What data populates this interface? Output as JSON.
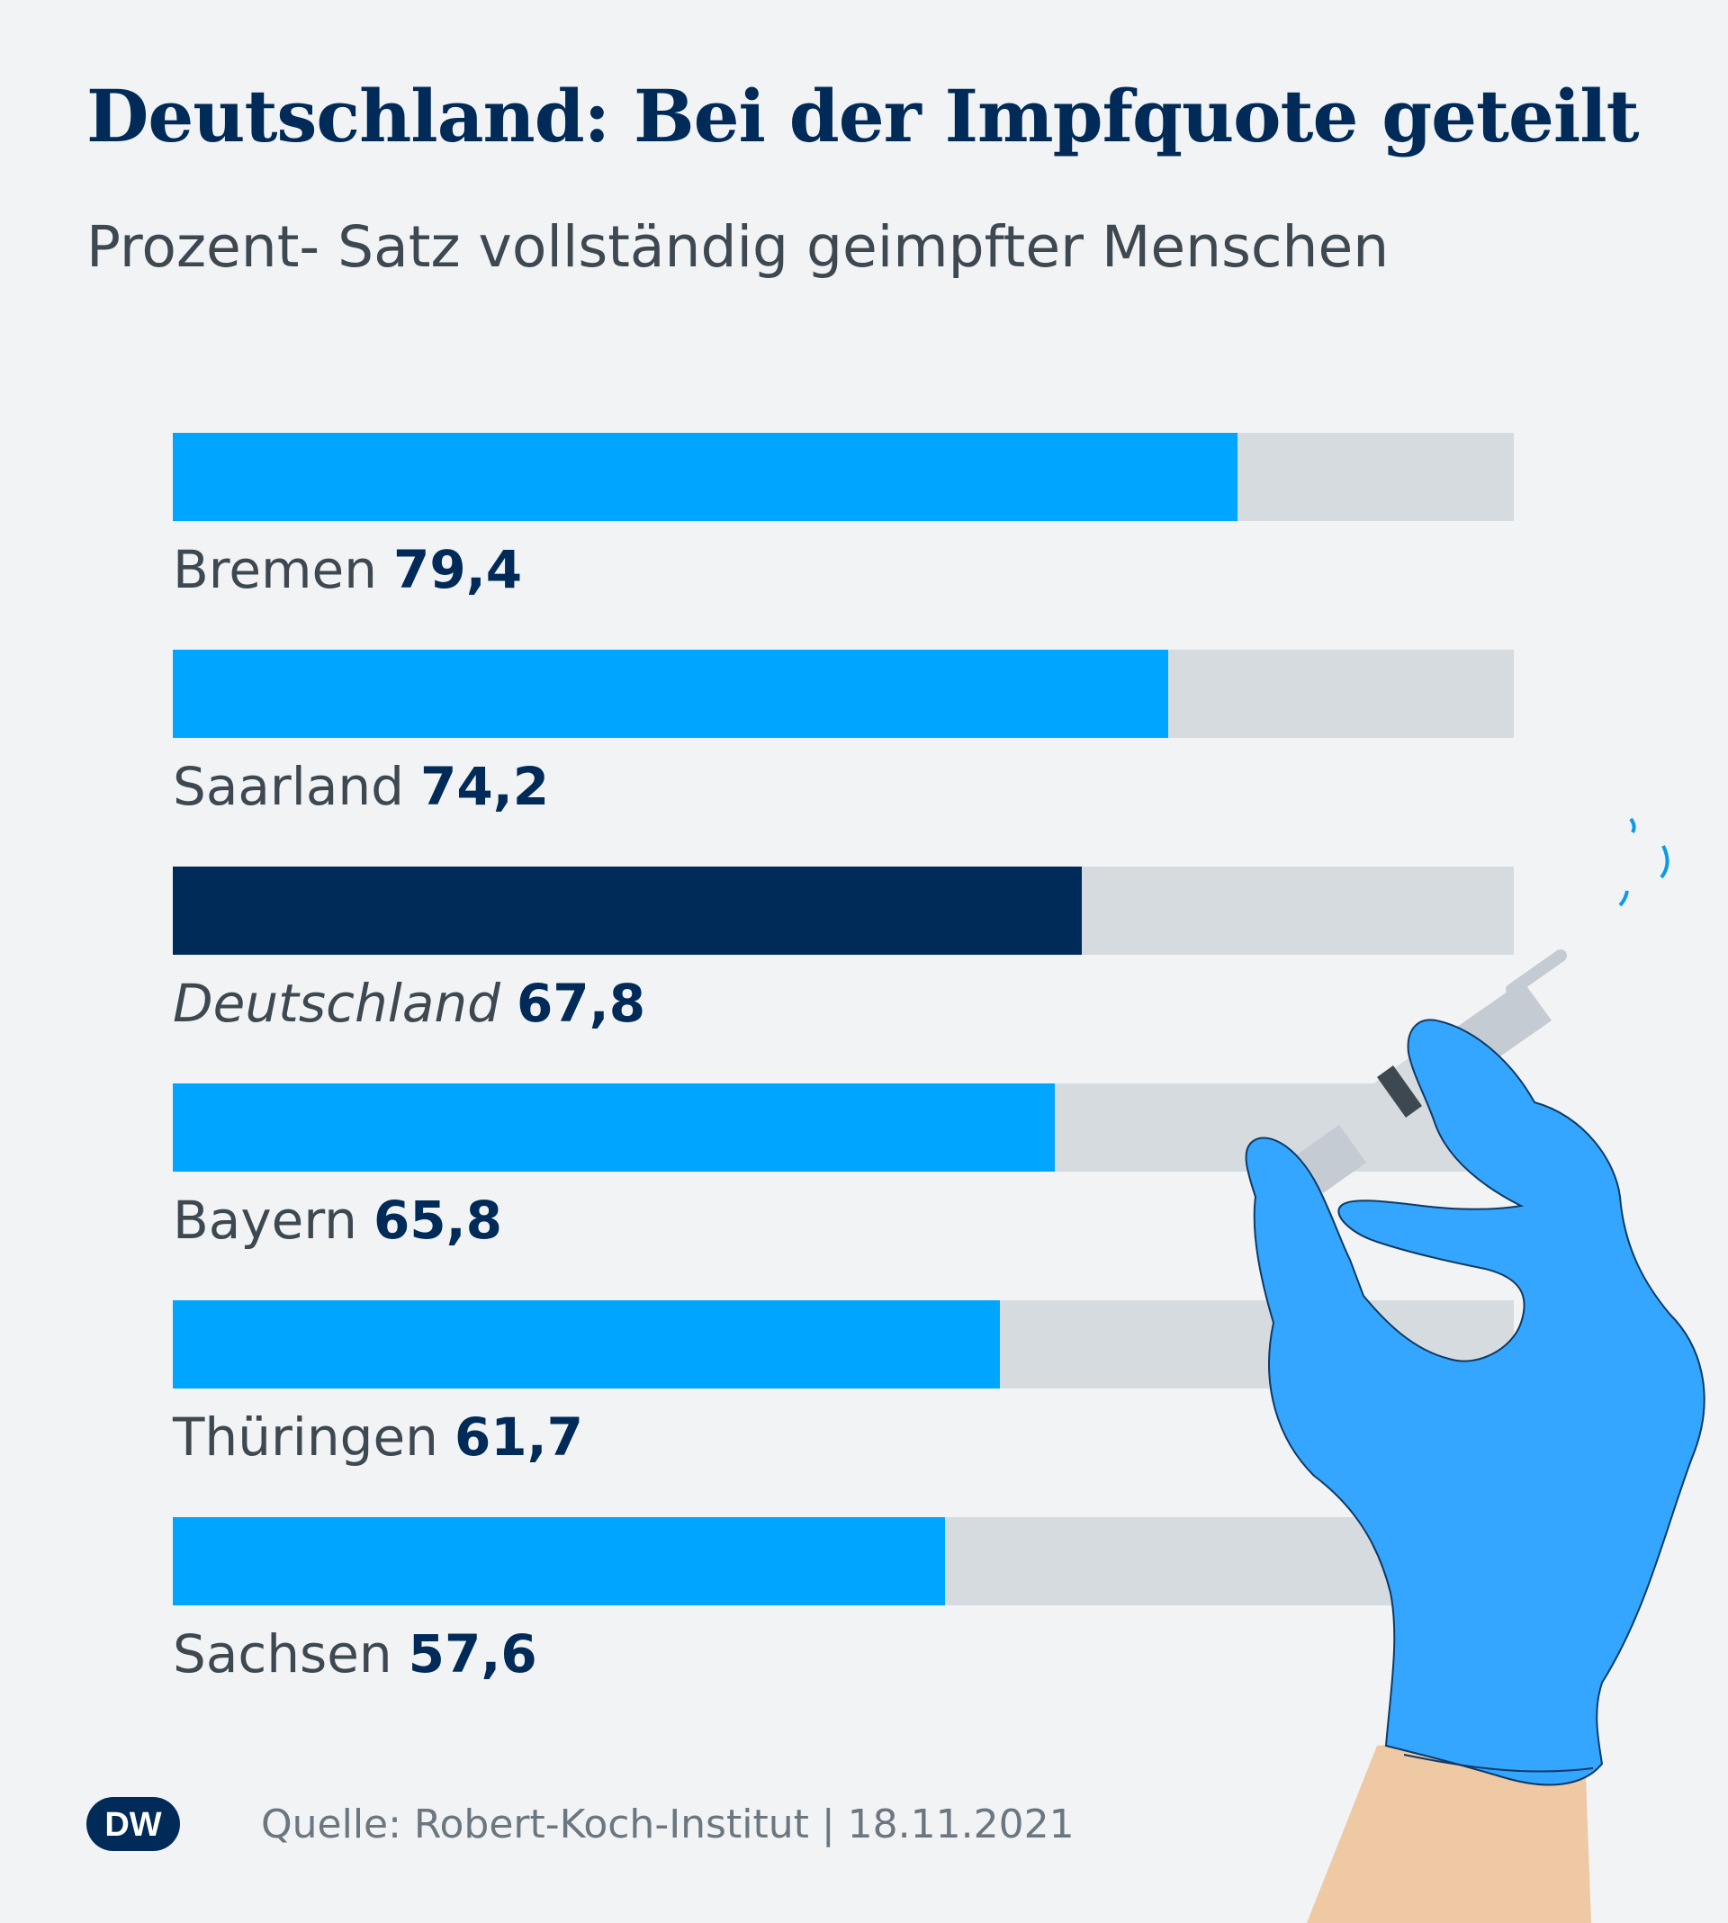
{
  "title": "Deutschland: Bei der Impfquote geteilt",
  "subtitle": "Prozent- Satz vollständig geimpfter Menschen",
  "chart_data": {
    "type": "bar",
    "orientation": "horizontal",
    "categories": [
      "Bremen",
      "Saarland",
      "Deutschland",
      "Bayern",
      "Thüringen",
      "Sachsen"
    ],
    "values": [
      79.4,
      74.2,
      67.8,
      65.8,
      61.7,
      57.6
    ],
    "value_labels": [
      "79,4",
      "74,2",
      "67,8",
      "65,8",
      "61,7",
      "57,6"
    ],
    "highlight": "Deutschland",
    "xlim": [
      0,
      100
    ],
    "grid": false,
    "colors": {
      "bar": "#00a5ff",
      "highlight": "#002a58",
      "track": "#d6dbe0"
    }
  },
  "footer": {
    "logo_text": "DW",
    "source": "Quelle: Robert-Koch-Institut  |  18.11.2021"
  }
}
